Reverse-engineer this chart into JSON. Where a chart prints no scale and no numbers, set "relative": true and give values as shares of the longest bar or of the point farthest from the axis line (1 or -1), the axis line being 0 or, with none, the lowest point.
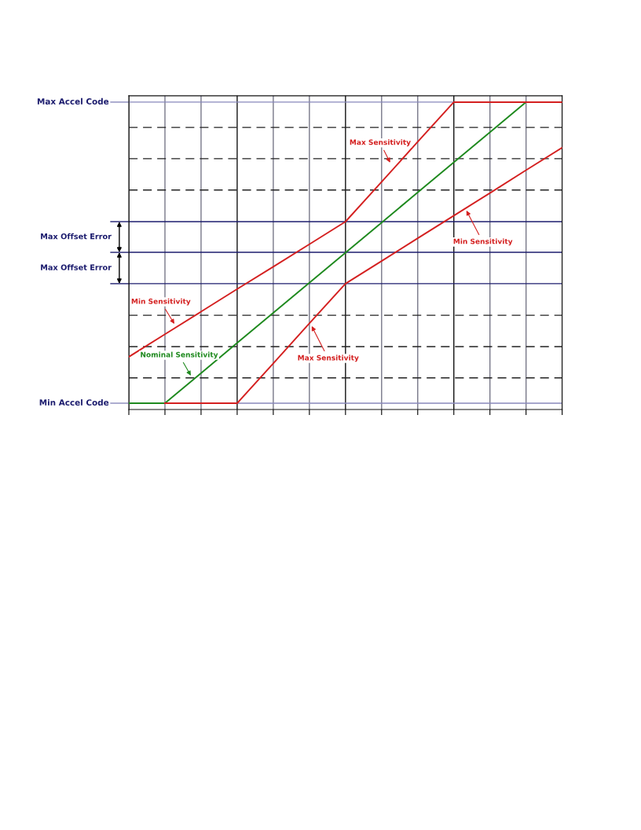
{
  "chart_data": {
    "type": "line",
    "relative": true,
    "categories": [
      null,
      null,
      null,
      null,
      null,
      null,
      null,
      null,
      null,
      null,
      null,
      null,
      null
    ],
    "series": [
      {
        "color": "#1f8a1f",
        "values": [
          0,
          0,
          0.1,
          0.2,
          0.3,
          0.4,
          0.5,
          0.6,
          0.7,
          0.8,
          0.9,
          1,
          null
        ]
      },
      {
        "color": "#d42020",
        "values": [
          0.154,
          0.229,
          0.304,
          0.379,
          0.453,
          0.528,
          0.603,
          0.735,
          0.868,
          1,
          1,
          1,
          1
        ]
      },
      {
        "color": "#d42020",
        "values": [
          null,
          0,
          0,
          0,
          0.132,
          0.265,
          0.397,
          0.472,
          0.548,
          0.623,
          0.698,
          0.774,
          0.849
        ]
      }
    ],
    "ref_lines": [
      {
        "axis": "y",
        "value": 1,
        "label": "Max Accel Code",
        "color": "#8888bb"
      },
      {
        "axis": "y",
        "value": 0,
        "label": "Min Accel Code",
        "color": "#8888bb"
      },
      {
        "axis": "y",
        "value": 0.603,
        "color": "#1c1c6e"
      },
      {
        "axis": "y",
        "value": 0.501,
        "color": "#1c1c6e"
      },
      {
        "axis": "y",
        "value": 0.397,
        "color": "#1c1c6e"
      }
    ],
    "grid": true,
    "marker": "none",
    "line_style": "solid",
    "annotations": [
      "Max Offset Error",
      "Max Offset Error",
      "Max Sensitivity",
      "Min Sensitivity",
      "Min Sensitivity",
      "Nominal Sensitivity",
      "Max Sensitivity"
    ]
  }
}
